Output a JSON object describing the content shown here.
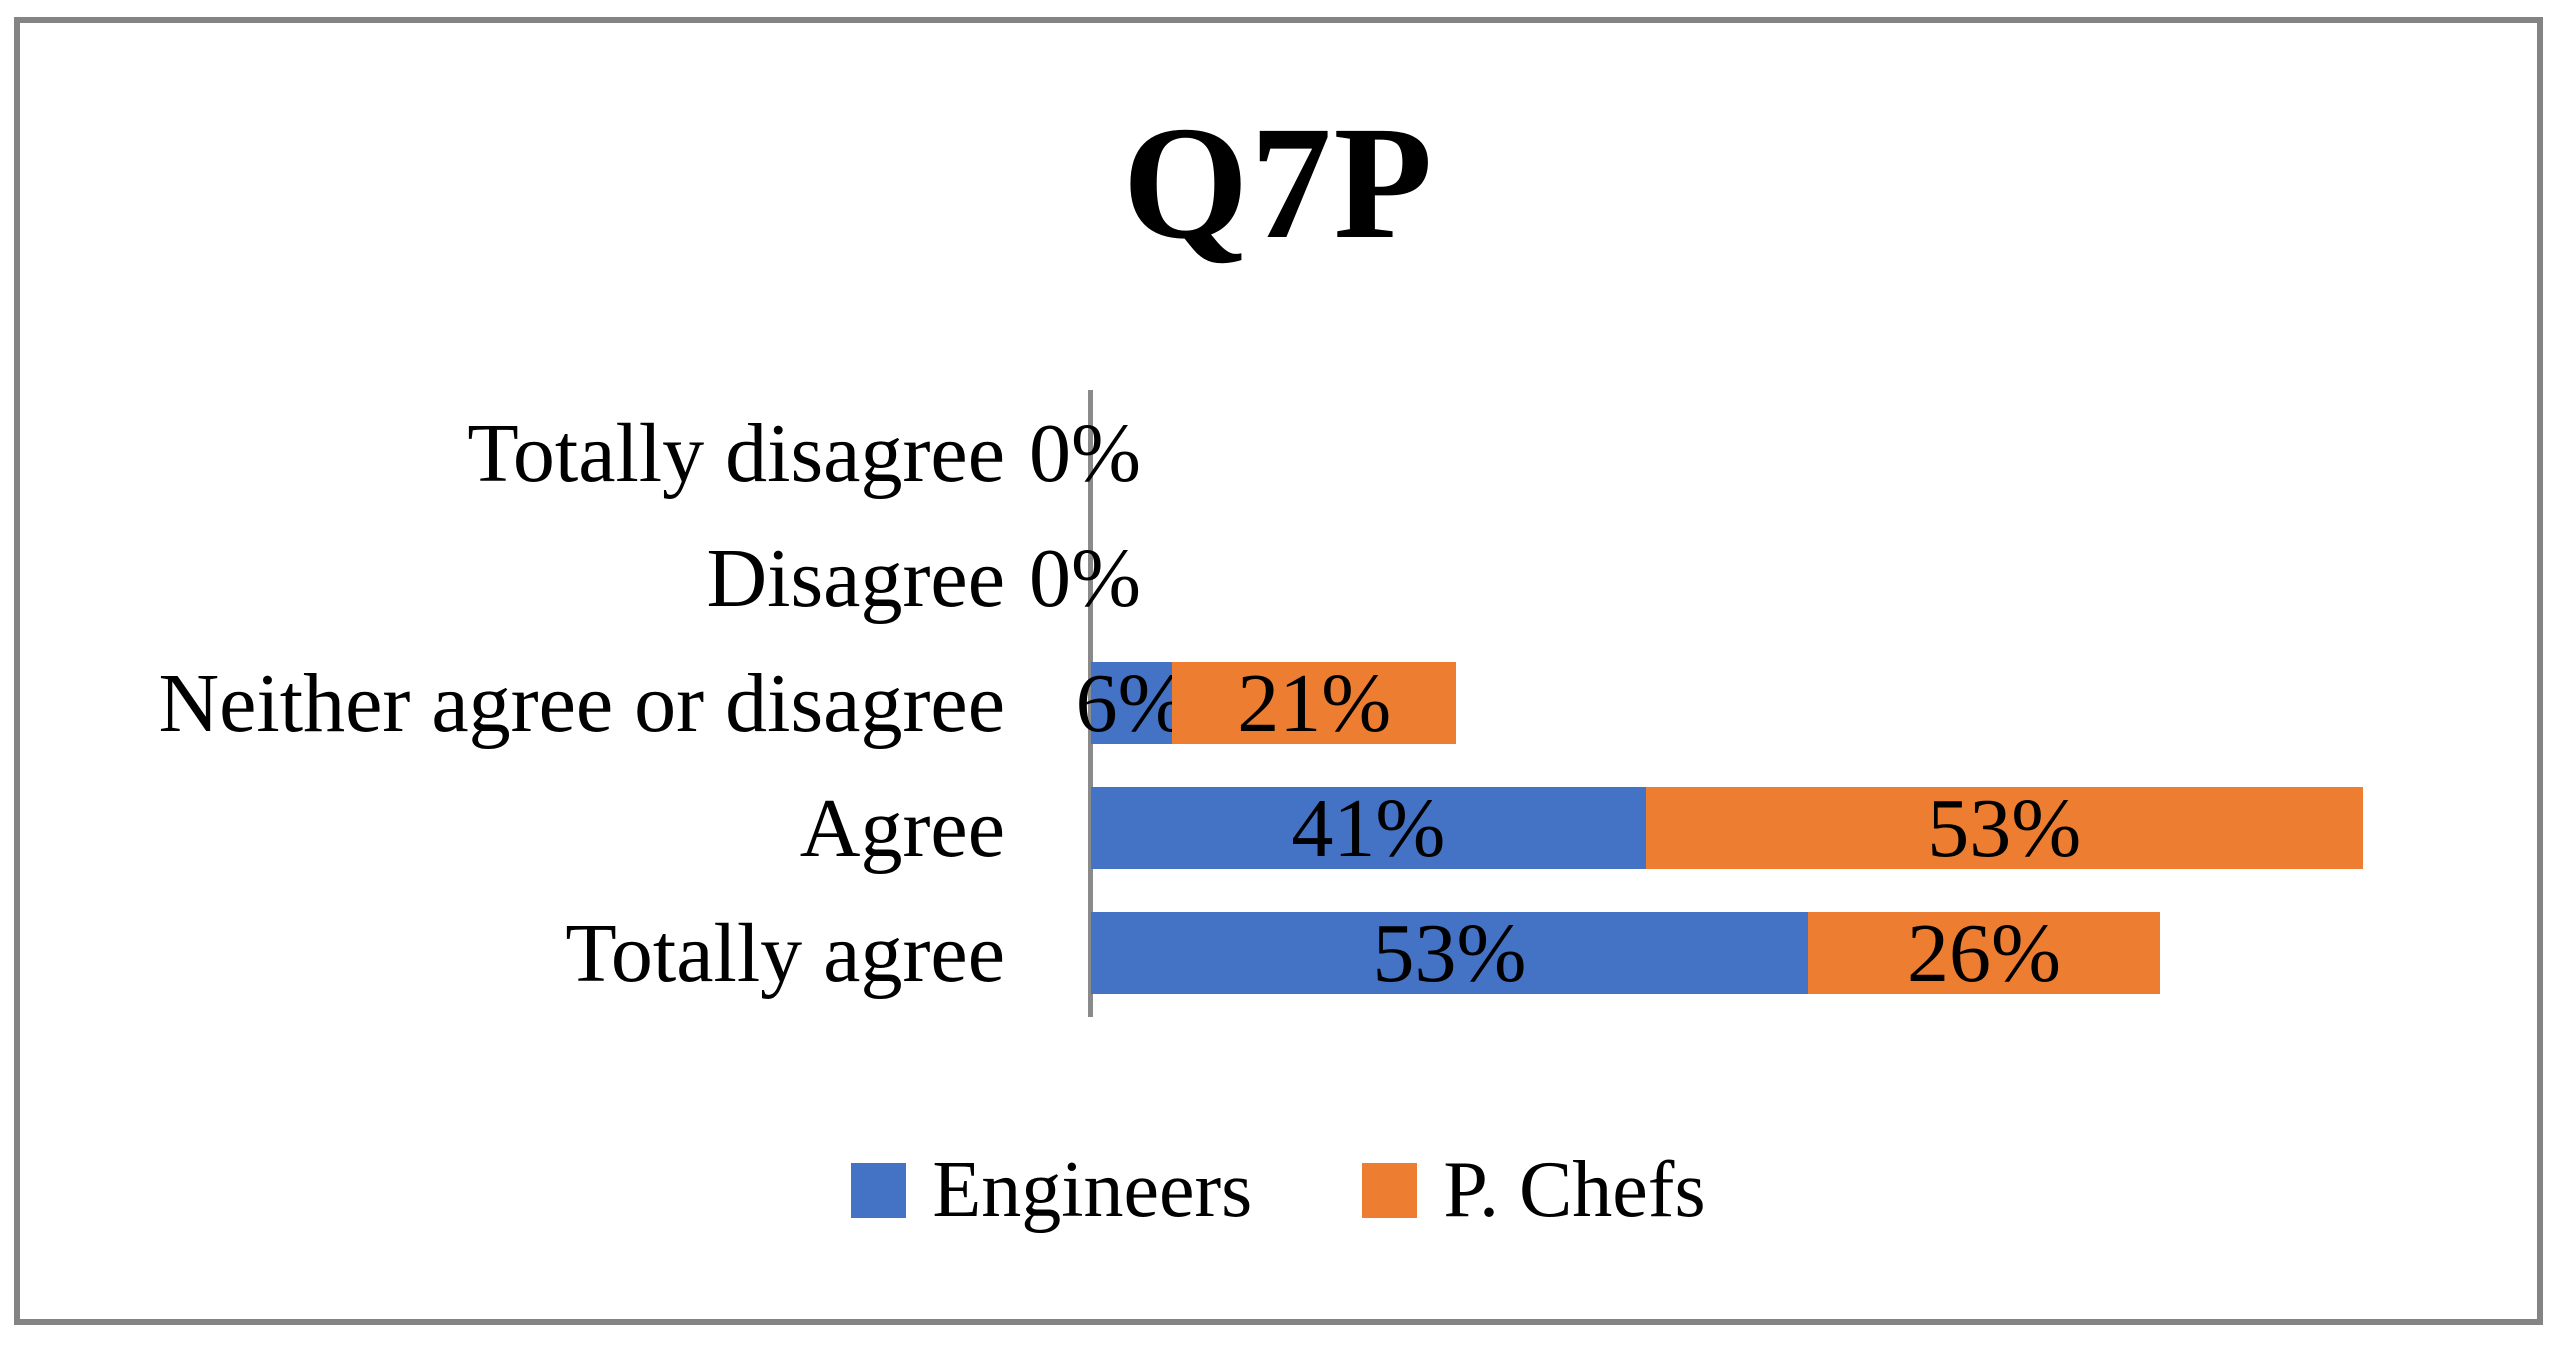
{
  "title": "Q7P",
  "value_suffix": "%",
  "chart_data": {
    "type": "bar",
    "orientation": "horizontal-stacked",
    "title": "Q7P",
    "categories_top_to_bottom": [
      "Totally disagree",
      "Disagree",
      "Neither agree or disagree",
      "Agree",
      "Totally agree"
    ],
    "series": [
      {
        "name": "Engineers",
        "color": "#4472C4",
        "values": [
          0,
          0,
          6,
          41,
          53
        ]
      },
      {
        "name": "P. Chefs",
        "color": "#ED7D31",
        "values": [
          0,
          0,
          21,
          53,
          26
        ]
      }
    ],
    "data_labels": {
      "Totally disagree": [
        "0%"
      ],
      "Disagree": [
        "0%"
      ],
      "Neither agree or disagree": [
        "6%",
        "21%"
      ],
      "Agree": [
        "41%",
        "53%"
      ],
      "Totally agree": [
        "53%",
        "26%"
      ]
    },
    "value_axis_range_pct": [
      0,
      100
    ],
    "gridlines": false,
    "legend_position": "bottom"
  },
  "legend": {
    "items": [
      {
        "label": "Engineers",
        "color": "#4472C4"
      },
      {
        "label": "P. Chefs",
        "color": "#ED7D31"
      }
    ]
  },
  "colors": {
    "engineers_blue": "#4472C4",
    "chefs_orange": "#ED7D31",
    "axis_gray": "#8A8A8A",
    "frame_gray": "#848484"
  }
}
